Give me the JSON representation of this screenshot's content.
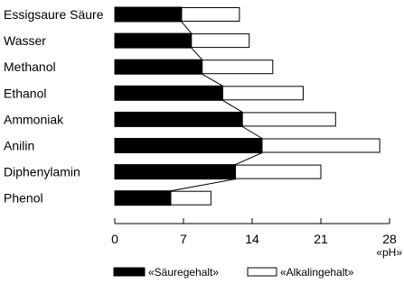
{
  "chart_data": {
    "type": "bar",
    "orientation": "horizontal",
    "stacked": true,
    "categories": [
      "Essigsaure Säure",
      "Wasser",
      "Methanol",
      "Ethanol",
      "Ammoniak",
      "Anilin",
      "Diphenylamin",
      "Phenol"
    ],
    "series": [
      {
        "name": "«Säuregehalt»",
        "color": "#000000",
        "values": [
          6.8,
          7.8,
          8.9,
          11.0,
          13.0,
          15.0,
          12.3,
          5.7
        ]
      },
      {
        "name": "«Alkalingehalt»",
        "color": "#ffffff",
        "values": [
          5.9,
          5.9,
          7.2,
          8.2,
          9.5,
          12.0,
          8.7,
          4.1
        ]
      }
    ],
    "connector_line": true,
    "x_ticks": [
      "0",
      "7",
      "14",
      "21",
      "28"
    ],
    "xlim": [
      0,
      28
    ],
    "x_unit": "«pH»",
    "grid": false,
    "legend_position": "bottom"
  }
}
